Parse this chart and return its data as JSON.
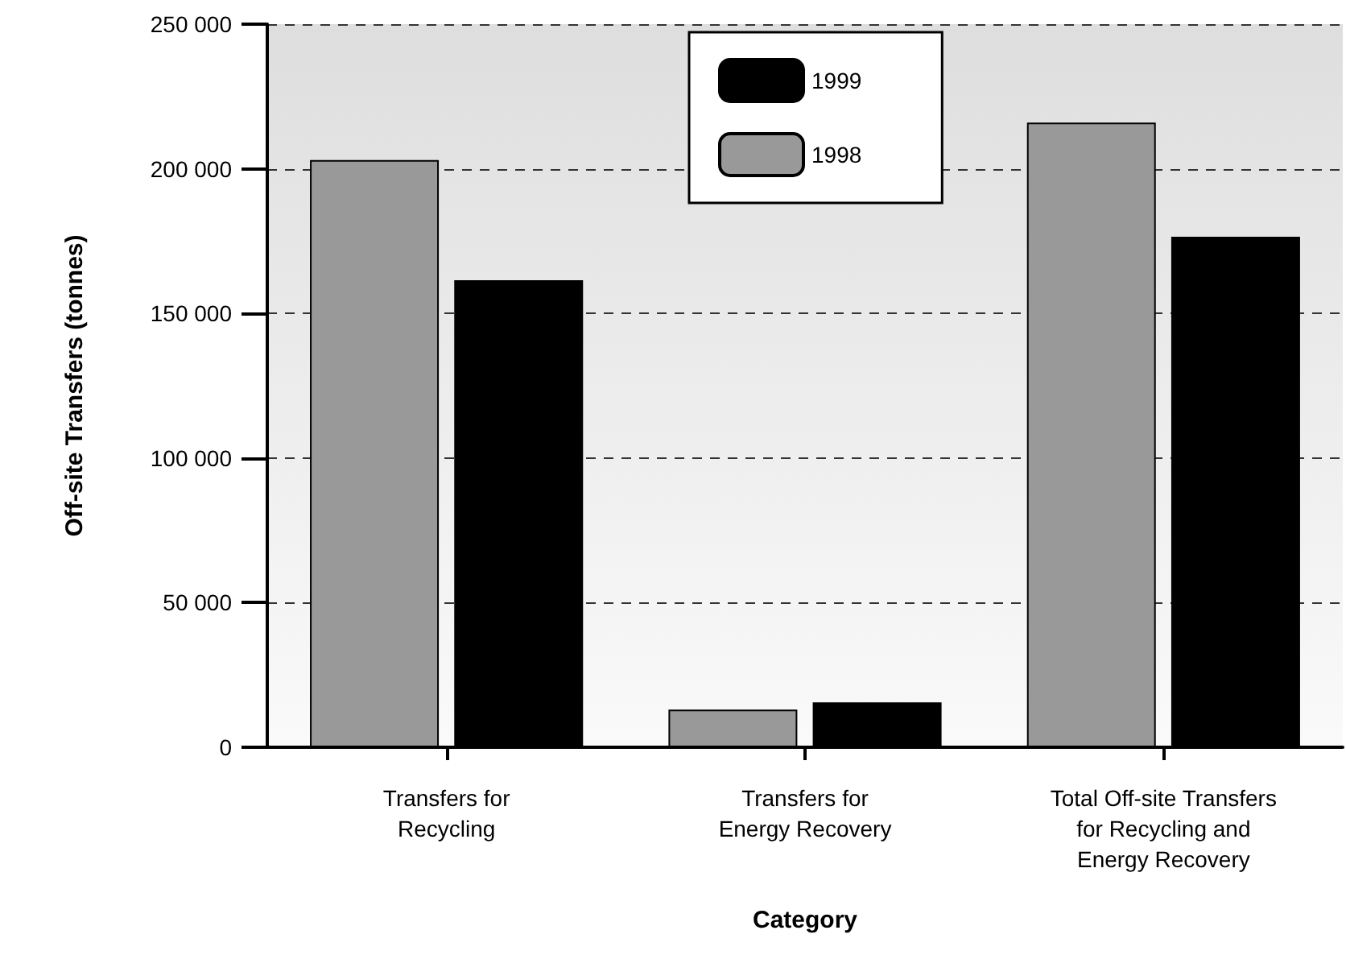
{
  "chart_data": {
    "type": "bar",
    "xlabel": "Category",
    "ylabel": "Off-site Transfers (tonnes)",
    "categories": [
      "Transfers for\nRecycling",
      "Transfers for\nEnergy Recovery",
      "Total Off-site Transfers\nfor Recycling and\nEnergy Recovery"
    ],
    "series": [
      {
        "name": "1998",
        "color": "#999999",
        "values": [
          203000,
          13000,
          216000
        ]
      },
      {
        "name": "1999",
        "color": "#000000",
        "values": [
          161500,
          15500,
          176500
        ]
      }
    ],
    "ylim": [
      0,
      250000
    ],
    "yticks": [
      {
        "value": 0,
        "label": "0"
      },
      {
        "value": 50000,
        "label": "50 000"
      },
      {
        "value": 100000,
        "label": "100 000"
      },
      {
        "value": 150000,
        "label": "150 000"
      },
      {
        "value": 200000,
        "label": "200 000"
      },
      {
        "value": 250000,
        "label": "250 000"
      }
    ],
    "grid": "y",
    "legend": "top"
  }
}
